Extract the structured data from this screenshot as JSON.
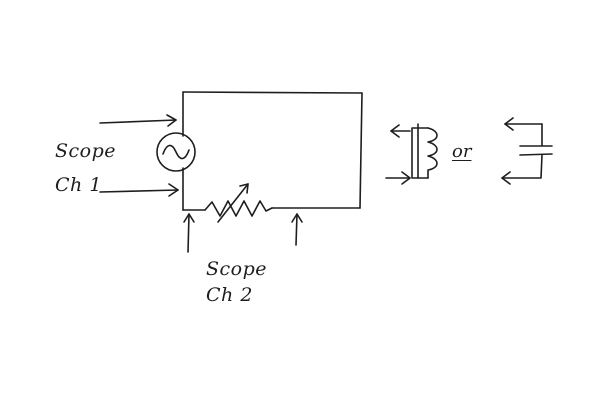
{
  "diagram": {
    "scope_ch1": {
      "line1": "Scope",
      "line2": "Ch 1"
    },
    "scope_ch2": {
      "line1": "Scope",
      "line2": "Ch 2"
    },
    "or_label": "or",
    "icons": {
      "source": "ac-source-icon",
      "resistor": "variable-resistor-icon",
      "inductor": "inductor-icon",
      "capacitor": "capacitor-icon"
    },
    "ink_color": "#1e1e1e"
  }
}
